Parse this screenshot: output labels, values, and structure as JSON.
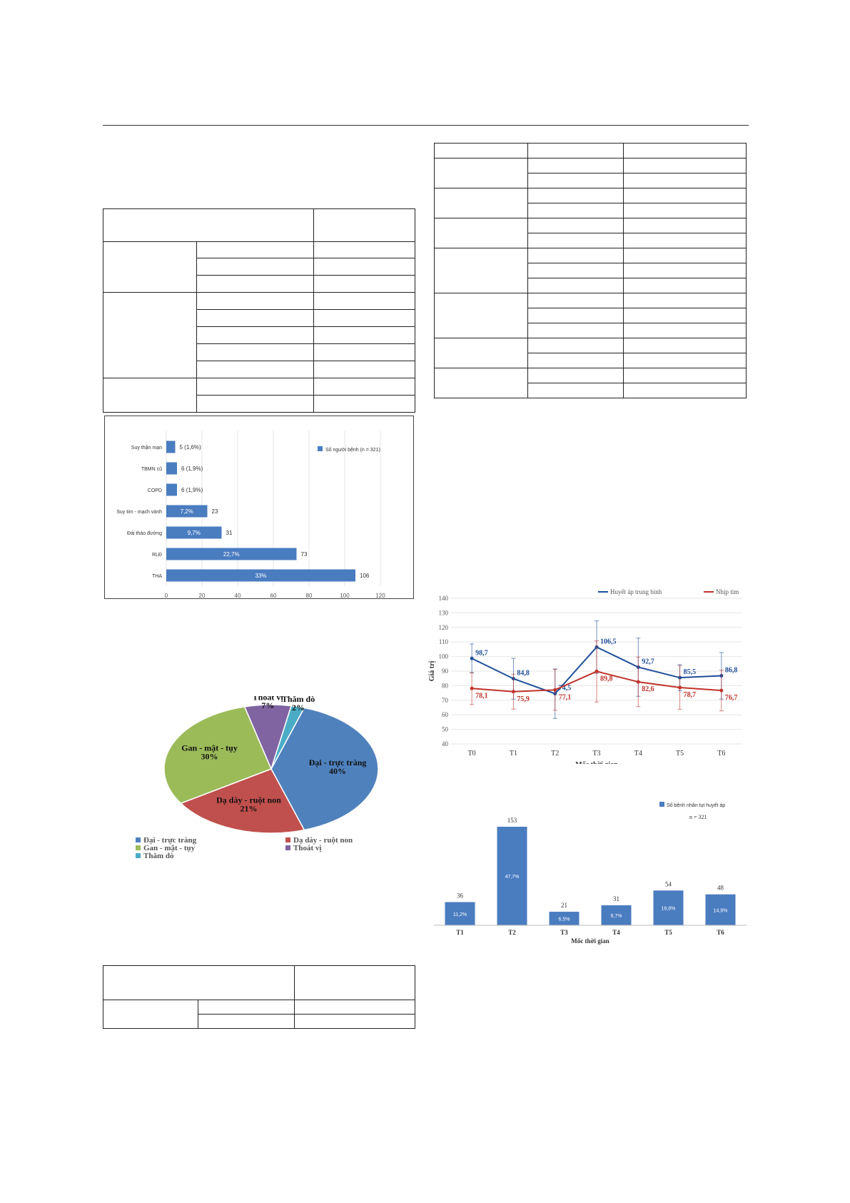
{
  "comorbidity_chart": {
    "type": "bar",
    "orientation": "horizontal",
    "categories": [
      "Suy thận mạn",
      "TBMN cũ",
      "COPD",
      "Suy tim - mạch vành",
      "Đái tháo đường",
      "RLĐ",
      "THA"
    ],
    "values": [
      5,
      6,
      6,
      23,
      31,
      73,
      106
    ],
    "labels_inside": [
      "",
      "",
      "",
      "7,2%",
      "9,7%",
      "22,7%",
      "33%"
    ],
    "labels_outside": [
      "5 (1,6%)",
      "6 (1,9%)",
      "6 (1,9%)",
      "23",
      "31",
      "73",
      "106"
    ],
    "xlim": [
      0,
      120
    ],
    "xticks": [
      "0",
      "20",
      "40",
      "60",
      "80",
      "100",
      "120"
    ],
    "legend": "Số người bệnh (n = 321)",
    "legend_position": "top-right",
    "color": "#4a7cc0"
  },
  "surgery_chart": {
    "type": "pie",
    "slices": [
      {
        "name": "Đại - trực tràng",
        "label": "Đại - trực tràng\n40%",
        "value": 40,
        "color": "#4f81bd"
      },
      {
        "name": "Dạ dày - ruột non",
        "label": "Dạ dày - ruột non\n21%",
        "value": 21,
        "color": "#c0504d"
      },
      {
        "name": "Gan - mật - tụy",
        "label": "Gan - mật - tụy\n30%",
        "value": 30,
        "color": "#9bbb59"
      },
      {
        "name": "Thoát vị",
        "label": "Thoát vị\n7%",
        "value": 7,
        "color": "#8064a2"
      },
      {
        "name": "Thăm dò",
        "label": "Thăm dò\n2%",
        "value": 2,
        "color": "#4bacc6"
      }
    ],
    "legend_position": "bottom"
  },
  "vitals_chart": {
    "type": "line",
    "x": [
      "T0",
      "T1",
      "T2",
      "T3",
      "T4",
      "T5",
      "T6"
    ],
    "series": [
      {
        "name": "Huyết áp trung bình",
        "values": [
          98.7,
          84.8,
          74.5,
          106.5,
          92.7,
          85.5,
          86.8
        ],
        "labels": [
          "98,7",
          "84,8",
          "74,5",
          "106,5",
          "92,7",
          "85,5",
          "86,8"
        ],
        "err": [
          10,
          14,
          17,
          18,
          20,
          9,
          16
        ],
        "color": "#1f4e99"
      },
      {
        "name": "Nhịp tim",
        "values": [
          78.1,
          75.9,
          77.1,
          89.8,
          82.6,
          78.7,
          76.7
        ],
        "labels": [
          "78,1",
          "75,9",
          "77,1",
          "89,8",
          "82,6",
          "78,7",
          "76,7"
        ],
        "err": [
          11,
          12,
          14,
          21,
          17,
          15,
          14
        ],
        "color": "#c0332b"
      }
    ],
    "ylim": [
      40,
      140
    ],
    "yticks": [
      "40",
      "50",
      "60",
      "70",
      "80",
      "90",
      "100",
      "110",
      "120",
      "130",
      "140"
    ],
    "ylabel": "Giá trị",
    "xlabel": "Mốc thời gian",
    "legend_position": "top-right"
  },
  "hypotension_chart": {
    "type": "bar",
    "categories": [
      "T1",
      "T2",
      "T3",
      "T4",
      "T5",
      "T6"
    ],
    "values": [
      36,
      153,
      21,
      31,
      54,
      48
    ],
    "value_labels": [
      "36",
      "153",
      "21",
      "31",
      "54",
      "48"
    ],
    "pct_labels": [
      "11,2%",
      "47,7%",
      "6,5%",
      "9,7%",
      "16,8%",
      "14,9%"
    ],
    "legend": "Số bệnh nhân tụt huyết áp",
    "note": "n = 321",
    "xlabel": "Mốc thời gian",
    "color": "#4a7cc0"
  }
}
